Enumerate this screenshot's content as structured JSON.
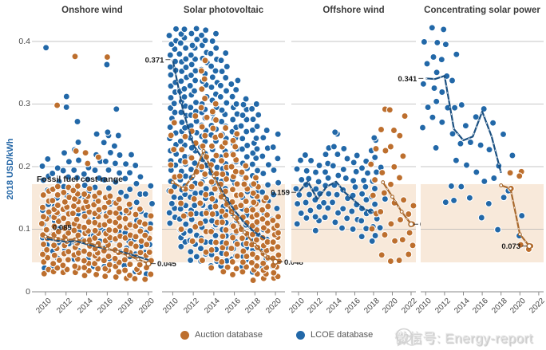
{
  "watermark": {
    "text": "微信号: Energy-report"
  },
  "colors": {
    "lcoe_dot": "#2268a8",
    "auction_dot": "#bd6f2e",
    "lcoe_trend": "#1a4f80",
    "auction_trend": "#a8682c",
    "band": "#f8e9da",
    "grid": "#b3b3b3",
    "axis": "#8a8a8a",
    "annotation": "#1c1c1c"
  },
  "chart_data": {
    "type": "scatter",
    "title": "",
    "xlabel": "",
    "ylabel": "2018 USD/kWh",
    "ylim": [
      0,
      0.43
    ],
    "yticks": [
      0,
      0.1,
      0.2,
      0.3,
      0.4
    ],
    "grid": true,
    "legend_position": "bottom",
    "fossil_band": {
      "label": "Fossil fuel cost range",
      "min": 0.047,
      "max": 0.172
    },
    "legend": [
      {
        "label": "Auction database",
        "series": "auction",
        "color": "#bd6f2e"
      },
      {
        "label": "LCOE database",
        "series": "lcoe",
        "color": "#2268a8"
      }
    ],
    "panels": [
      {
        "title": "Onshore wind",
        "year_min": 2010,
        "year_max": 2020,
        "xticks": [
          2010,
          2012,
          2014,
          2016,
          2018,
          2020
        ],
        "lcoe_columns": [
          [
            2010,
            0.04,
            0.21,
            16
          ],
          [
            2011,
            0.04,
            0.2,
            14
          ],
          [
            2012,
            0.04,
            0.22,
            15
          ],
          [
            2013,
            0.05,
            0.24,
            14
          ],
          [
            2014,
            0.04,
            0.2,
            16
          ],
          [
            2015,
            0.04,
            0.22,
            15
          ],
          [
            2016,
            0.04,
            0.25,
            16
          ],
          [
            2017,
            0.05,
            0.25,
            14
          ],
          [
            2018,
            0.04,
            0.22,
            14
          ],
          [
            2019,
            0.03,
            0.2,
            13
          ],
          [
            2020,
            0.03,
            0.17,
            10
          ]
        ],
        "lcoe_points": [
          [
            2010,
            0.39
          ],
          [
            2012,
            0.312
          ],
          [
            2012,
            0.295
          ],
          [
            2013,
            0.272
          ],
          [
            2016,
            0.363
          ],
          [
            2017,
            0.292
          ],
          [
            2015,
            0.252
          ],
          [
            2016,
            0.255
          ]
        ],
        "auction_columns": [
          [
            2010,
            0.03,
            0.16,
            18
          ],
          [
            2011,
            0.03,
            0.17,
            20
          ],
          [
            2012,
            0.03,
            0.165,
            20
          ],
          [
            2013,
            0.03,
            0.17,
            22
          ],
          [
            2014,
            0.025,
            0.165,
            22
          ],
          [
            2015,
            0.03,
            0.16,
            20
          ],
          [
            2016,
            0.025,
            0.155,
            20
          ],
          [
            2017,
            0.025,
            0.15,
            18
          ],
          [
            2018,
            0.02,
            0.14,
            16
          ],
          [
            2019,
            0.02,
            0.13,
            14
          ],
          [
            2020,
            0.02,
            0.12,
            12
          ]
        ],
        "auction_points": [
          [
            2013,
            0.376
          ],
          [
            2016,
            0.375
          ],
          [
            2011,
            0.298
          ],
          [
            2013,
            0.225
          ],
          [
            2014,
            0.222
          ],
          [
            2015,
            0.215
          ],
          [
            2014,
            0.205
          ]
        ],
        "lcoe_trend": {
          "years": [
            2010,
            2011,
            2012,
            2013,
            2014,
            2015,
            2016,
            2017,
            2018,
            2019,
            2020
          ],
          "values": [
            0.085,
            0.082,
            0.08,
            0.081,
            0.076,
            0.072,
            0.068,
            0.065,
            0.061,
            0.056,
            0.051
          ]
        },
        "auction_trend": {
          "years": [
            2010,
            2011,
            2012,
            2013,
            2014,
            2015,
            2016,
            2017,
            2018,
            2019,
            2020
          ],
          "values": [
            0.088,
            0.085,
            0.083,
            0.084,
            0.079,
            0.074,
            0.069,
            0.064,
            0.058,
            0.052,
            0.045
          ]
        },
        "annotations": [
          {
            "text": "0.085",
            "year": 2010,
            "value": 0.085,
            "side": "above"
          },
          {
            "text": "0.045",
            "year": 2020,
            "value": 0.045,
            "side": "right"
          }
        ]
      },
      {
        "title": "Solar photovoltaic",
        "year_min": 2010,
        "year_max": 2020,
        "xticks": [
          2010,
          2012,
          2014,
          2016,
          2018,
          2020
        ],
        "lcoe_columns": [
          [
            2010,
            0.11,
            0.42,
            38
          ],
          [
            2011,
            0.07,
            0.42,
            46
          ],
          [
            2012,
            0.05,
            0.42,
            46
          ],
          [
            2013,
            0.05,
            0.42,
            42
          ],
          [
            2014,
            0.04,
            0.41,
            40
          ],
          [
            2015,
            0.04,
            0.38,
            36
          ],
          [
            2016,
            0.05,
            0.34,
            32
          ],
          [
            2017,
            0.04,
            0.31,
            30
          ],
          [
            2018,
            0.03,
            0.3,
            32
          ],
          [
            2019,
            0.04,
            0.26,
            16
          ],
          [
            2020,
            0.04,
            0.25,
            12
          ]
        ],
        "lcoe_points": [],
        "auction_columns": [
          [
            2010,
            0.16,
            0.27,
            6
          ],
          [
            2011,
            0.1,
            0.25,
            8
          ],
          [
            2012,
            0.08,
            0.28,
            10
          ],
          [
            2013,
            0.05,
            0.37,
            22
          ],
          [
            2014,
            0.04,
            0.3,
            20
          ],
          [
            2015,
            0.03,
            0.26,
            24
          ],
          [
            2016,
            0.03,
            0.25,
            24
          ],
          [
            2017,
            0.03,
            0.2,
            20
          ],
          [
            2018,
            0.02,
            0.18,
            24
          ],
          [
            2019,
            0.02,
            0.15,
            20
          ],
          [
            2020,
            0.02,
            0.12,
            18
          ]
        ],
        "auction_points": [],
        "lcoe_trend": {
          "years": [
            2010,
            2011,
            2012,
            2013,
            2014,
            2015,
            2016,
            2017,
            2018,
            2019
          ],
          "values": [
            0.371,
            0.29,
            0.235,
            0.21,
            0.185,
            0.155,
            0.13,
            0.11,
            0.095,
            0.085
          ]
        },
        "auction_trend": {
          "years": [
            2010,
            2011,
            2012,
            2013,
            2014,
            2015,
            2016,
            2017,
            2018,
            2019,
            2020
          ],
          "values": [
            0.175,
            0.165,
            0.185,
            0.225,
            0.185,
            0.15,
            0.12,
            0.095,
            0.075,
            0.058,
            0.048
          ]
        },
        "annotations": [
          {
            "text": "0.371",
            "year": 2010,
            "value": 0.371,
            "side": "left"
          },
          {
            "text": "0.048",
            "year": 2020,
            "value": 0.048,
            "side": "right"
          }
        ]
      },
      {
        "title": "Offshore wind",
        "year_min": 2010,
        "year_max": 2022,
        "xticks": [
          2010,
          2012,
          2014,
          2016,
          2018,
          2020,
          2022
        ],
        "lcoe_columns": [
          [
            2010,
            0.11,
            0.21,
            8
          ],
          [
            2011,
            0.12,
            0.22,
            9
          ],
          [
            2012,
            0.1,
            0.2,
            10
          ],
          [
            2013,
            0.12,
            0.23,
            10
          ],
          [
            2014,
            0.11,
            0.25,
            10
          ],
          [
            2015,
            0.1,
            0.23,
            9
          ],
          [
            2016,
            0.1,
            0.22,
            10
          ],
          [
            2017,
            0.09,
            0.21,
            12
          ],
          [
            2018,
            0.08,
            0.24,
            14
          ],
          [
            2019,
            0.1,
            0.2,
            3
          ]
        ],
        "lcoe_points": [
          [
            2014,
            0.255
          ],
          [
            2018,
            0.246
          ]
        ],
        "auction_columns": [
          [
            2018,
            0.1,
            0.23,
            6
          ],
          [
            2019,
            0.06,
            0.29,
            8
          ],
          [
            2020,
            0.05,
            0.29,
            9
          ],
          [
            2021,
            0.05,
            0.28,
            8
          ],
          [
            2022,
            0.06,
            0.14,
            6
          ]
        ],
        "auction_points": [],
        "lcoe_trend": {
          "years": [
            2010,
            2011,
            2012,
            2013,
            2014,
            2015,
            2016,
            2017,
            2018
          ],
          "values": [
            0.159,
            0.176,
            0.148,
            0.168,
            0.176,
            0.158,
            0.145,
            0.132,
            0.127
          ]
        },
        "auction_trend": {
          "years": [
            2019,
            2020,
            2021,
            2022
          ],
          "values": [
            0.175,
            0.152,
            0.128,
            0.108
          ]
        },
        "annotations": [
          {
            "text": "0.159",
            "year": 2010,
            "value": 0.159,
            "side": "left"
          },
          {
            "text": "0.108",
            "year": 2022,
            "value": 0.108,
            "side": "right"
          }
        ]
      },
      {
        "title": "Concentrating solar power",
        "year_min": 2010,
        "year_max": 2022,
        "xticks": [
          2010,
          2012,
          2014,
          2016,
          2018,
          2020,
          2022
        ],
        "lcoe_columns": [
          [
            2010,
            0.26,
            0.4,
            5
          ],
          [
            2011,
            0.28,
            0.42,
            7
          ],
          [
            2012,
            0.27,
            0.42,
            7
          ],
          [
            2013,
            0.17,
            0.38,
            6
          ],
          [
            2014,
            0.17,
            0.3,
            5
          ],
          [
            2015,
            0.15,
            0.28,
            4
          ],
          [
            2016,
            0.12,
            0.29,
            4
          ],
          [
            2017,
            0.14,
            0.27,
            4
          ],
          [
            2018,
            0.1,
            0.25,
            4
          ],
          [
            2019,
            0.16,
            0.22,
            2
          ],
          [
            2020,
            0.09,
            0.12,
            2
          ]
        ],
        "lcoe_points": [
          [
            2012,
            0.143
          ],
          [
            2013,
            0.146
          ],
          [
            2011,
            0.23
          ]
        ],
        "auction_columns": [],
        "auction_points": [
          [
            2019,
            0.19
          ],
          [
            2020,
            0.192
          ],
          [
            2020,
            0.185
          ],
          [
            2019,
            0.165
          ],
          [
            2020,
            0.075
          ],
          [
            2021,
            0.073
          ],
          [
            2021,
            0.068
          ]
        ],
        "lcoe_trend": {
          "years": [
            2010,
            2011,
            2012,
            2013,
            2014,
            2015,
            2016,
            2017,
            2018
          ],
          "values": [
            0.341,
            0.34,
            0.345,
            0.26,
            0.242,
            0.248,
            0.288,
            0.248,
            0.19
          ]
        },
        "auction_trend": {
          "years": [
            2018,
            2019,
            2020,
            2021
          ],
          "values": [
            0.17,
            0.165,
            0.092,
            0.073
          ]
        },
        "annotations": [
          {
            "text": "0.341",
            "year": 2010,
            "value": 0.341,
            "side": "left"
          },
          {
            "text": "0.073",
            "year": 2021,
            "value": 0.073,
            "side": "left"
          }
        ]
      }
    ]
  }
}
